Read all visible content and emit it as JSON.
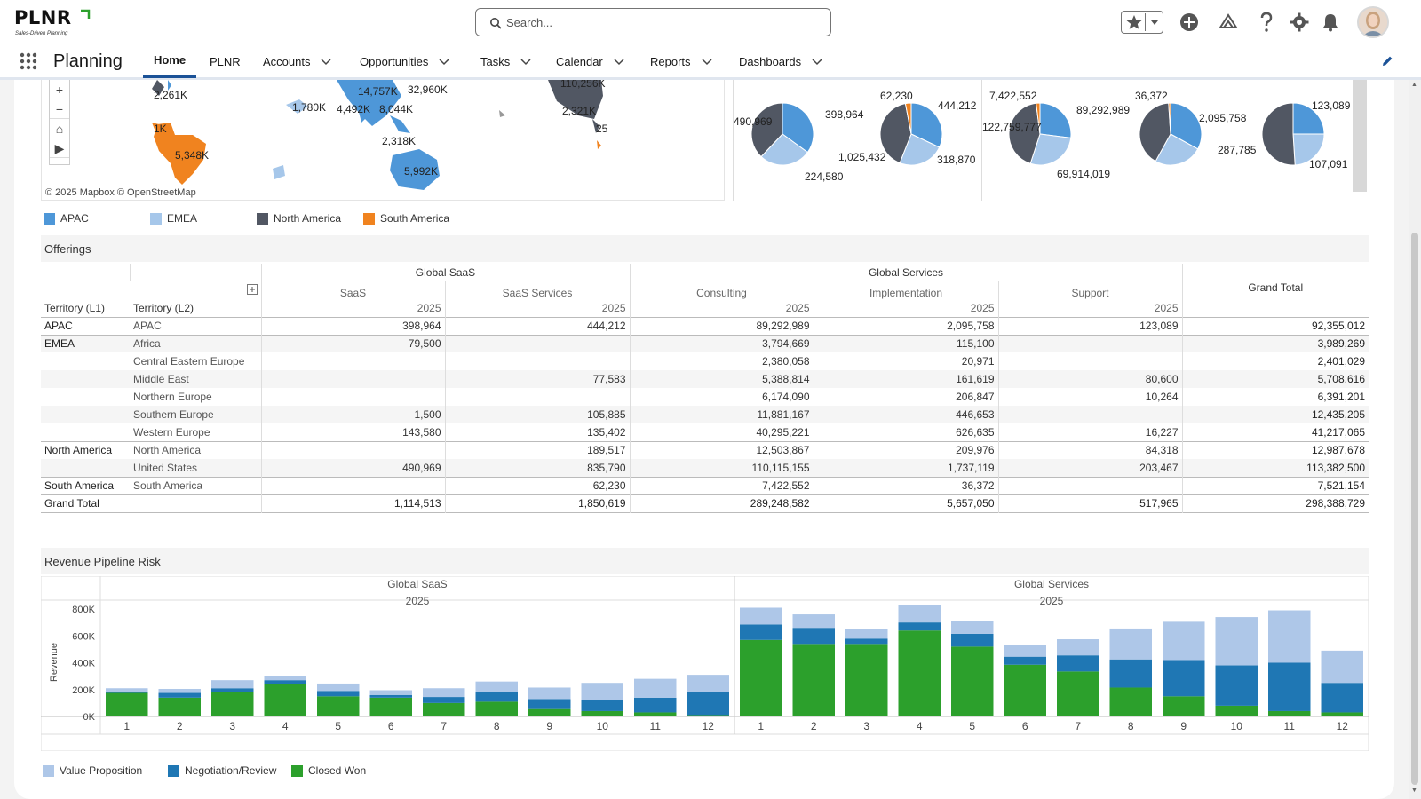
{
  "header": {
    "logo_text": "PLNR",
    "logo_tagline": "Sales-Driven Planning",
    "search_placeholder": "Search...",
    "icons": [
      "favorites-star-icon",
      "add-icon",
      "trailhead-icon",
      "help-icon",
      "setup-gear-icon",
      "notifications-bell-icon",
      "user-avatar"
    ]
  },
  "nav": {
    "app_name": "Planning",
    "items": [
      {
        "label": "Home",
        "active": true,
        "dropdown": false
      },
      {
        "label": "PLNR",
        "active": false,
        "dropdown": false
      },
      {
        "label": "Accounts",
        "active": false,
        "dropdown": true
      },
      {
        "label": "Opportunities",
        "active": false,
        "dropdown": true
      },
      {
        "label": "Tasks",
        "active": false,
        "dropdown": true
      },
      {
        "label": "Calendar",
        "active": false,
        "dropdown": true
      },
      {
        "label": "Reports",
        "active": false,
        "dropdown": true
      },
      {
        "label": "Dashboards",
        "active": false,
        "dropdown": true
      }
    ]
  },
  "map": {
    "attribution": "© 2025 Mapbox © OpenStreetMap",
    "controls": [
      "+",
      "−",
      "⌂",
      "▶"
    ],
    "labels": [
      "2,261K",
      "14,757K",
      "32,960K",
      "1,780K",
      "4,492K",
      "8,044K",
      "110,256K",
      "2,321K",
      "1K",
      "25",
      "2,318K",
      "5,348K",
      "5,992K"
    ]
  },
  "pies": {
    "labels": [
      "490,969",
      "398,964",
      "224,580",
      "62,230",
      "444,212",
      "1,025,432",
      "318,870",
      "7,422,552",
      "122,759,777",
      "89,292,989",
      "69,914,019",
      "36,372",
      "2,095,758",
      "287,785",
      "123,089",
      "107,091"
    ]
  },
  "region_legend": [
    {
      "label": "APAC",
      "color": "#4e97d8"
    },
    {
      "label": "EMEA",
      "color": "#a6c7ea"
    },
    {
      "label": "North America",
      "color": "#515763"
    },
    {
      "label": "South America",
      "color": "#f0831f"
    }
  ],
  "offerings": {
    "title": "Offerings",
    "group_headers": [
      "Global SaaS",
      "Global Services"
    ],
    "columns": [
      "SaaS",
      "SaaS Services",
      "Consulting",
      "Implementation",
      "Support"
    ],
    "year": "2025",
    "grand_total_label": "Grand Total",
    "row_headers": [
      "Territory (L1)",
      "Territory (L2)"
    ],
    "rows": [
      {
        "l1": "APAC",
        "l2": "APAC",
        "values": [
          "398,964",
          "444,212",
          "89,292,989",
          "2,095,758",
          "123,089"
        ],
        "total": "92,355,012"
      },
      {
        "l1": "EMEA",
        "l2": "Africa",
        "values": [
          "79,500",
          "",
          "3,794,669",
          "115,100",
          ""
        ],
        "total": "3,989,269"
      },
      {
        "l1": "",
        "l2": "Central Eastern Europe",
        "values": [
          "",
          "",
          "2,380,058",
          "20,971",
          ""
        ],
        "total": "2,401,029"
      },
      {
        "l1": "",
        "l2": "Middle East",
        "values": [
          "",
          "77,583",
          "5,388,814",
          "161,619",
          "80,600"
        ],
        "total": "5,708,616"
      },
      {
        "l1": "",
        "l2": "Northern Europe",
        "values": [
          "",
          "",
          "6,174,090",
          "206,847",
          "10,264"
        ],
        "total": "6,391,201"
      },
      {
        "l1": "",
        "l2": "Southern Europe",
        "values": [
          "1,500",
          "105,885",
          "11,881,167",
          "446,653",
          ""
        ],
        "total": "12,435,205"
      },
      {
        "l1": "",
        "l2": "Western Europe",
        "values": [
          "143,580",
          "135,402",
          "40,295,221",
          "626,635",
          "16,227"
        ],
        "total": "41,217,065"
      },
      {
        "l1": "North America",
        "l2": "North America",
        "values": [
          "",
          "189,517",
          "12,503,867",
          "209,976",
          "84,318"
        ],
        "total": "12,987,678"
      },
      {
        "l1": "",
        "l2": "United States",
        "values": [
          "490,969",
          "835,790",
          "110,115,155",
          "1,737,119",
          "203,467"
        ],
        "total": "113,382,500"
      },
      {
        "l1": "South America",
        "l2": "South America",
        "values": [
          "",
          "62,230",
          "7,422,552",
          "36,372",
          ""
        ],
        "total": "7,521,154"
      }
    ],
    "grand_total": {
      "label": "Grand Total",
      "values": [
        "1,114,513",
        "1,850,619",
        "289,248,582",
        "5,657,050",
        "517,965"
      ],
      "total": "298,388,729"
    }
  },
  "pipeline": {
    "title": "Revenue Pipeline Risk",
    "stage_legend": [
      {
        "label": "Value Proposition",
        "color": "#aec7e8"
      },
      {
        "label": "Negotiation/Review",
        "color": "#1f77b4"
      },
      {
        "label": "Closed Won",
        "color": "#2ca02c"
      }
    ]
  },
  "chart_data": {
    "type": "bar",
    "stacked": true,
    "ylabel": "Revenue",
    "ylim": [
      0,
      800000
    ],
    "yticks": [
      "0K",
      "200K",
      "400K",
      "600K",
      "800K"
    ],
    "panels": [
      {
        "header": "Global SaaS",
        "year": "2025",
        "categories": [
          "1",
          "2",
          "3",
          "4",
          "5",
          "6",
          "7",
          "8",
          "9",
          "10",
          "11",
          "12"
        ],
        "series": [
          {
            "name": "Closed Won",
            "values": [
              175000,
              140000,
              180000,
              240000,
              150000,
              140000,
              100000,
              110000,
              55000,
              40000,
              30000,
              10000
            ]
          },
          {
            "name": "Negotiation/Review",
            "values": [
              10000,
              35000,
              30000,
              30000,
              40000,
              20000,
              45000,
              70000,
              75000,
              80000,
              110000,
              170000
            ]
          },
          {
            "name": "Value Proposition",
            "values": [
              25000,
              30000,
              60000,
              30000,
              55000,
              35000,
              65000,
              80000,
              85000,
              130000,
              140000,
              130000
            ]
          }
        ]
      },
      {
        "header": "Global Services",
        "year": "2025",
        "categories": [
          "1",
          "2",
          "3",
          "4",
          "5",
          "6",
          "7",
          "8",
          "9",
          "10",
          "11",
          "12"
        ],
        "series": [
          {
            "name": "Closed Won",
            "values": [
              570000,
              540000,
              540000,
              640000,
              520000,
              385000,
              335000,
              215000,
              150000,
              80000,
              40000,
              30000
            ]
          },
          {
            "name": "Negotiation/Review",
            "values": [
              115000,
              120000,
              40000,
              60000,
              95000,
              60000,
              120000,
              210000,
              270000,
              300000,
              360000,
              220000
            ]
          },
          {
            "name": "Value Proposition",
            "values": [
              125000,
              100000,
              70000,
              130000,
              95000,
              90000,
              120000,
              230000,
              285000,
              360000,
              390000,
              240000
            ]
          }
        ]
      }
    ]
  }
}
